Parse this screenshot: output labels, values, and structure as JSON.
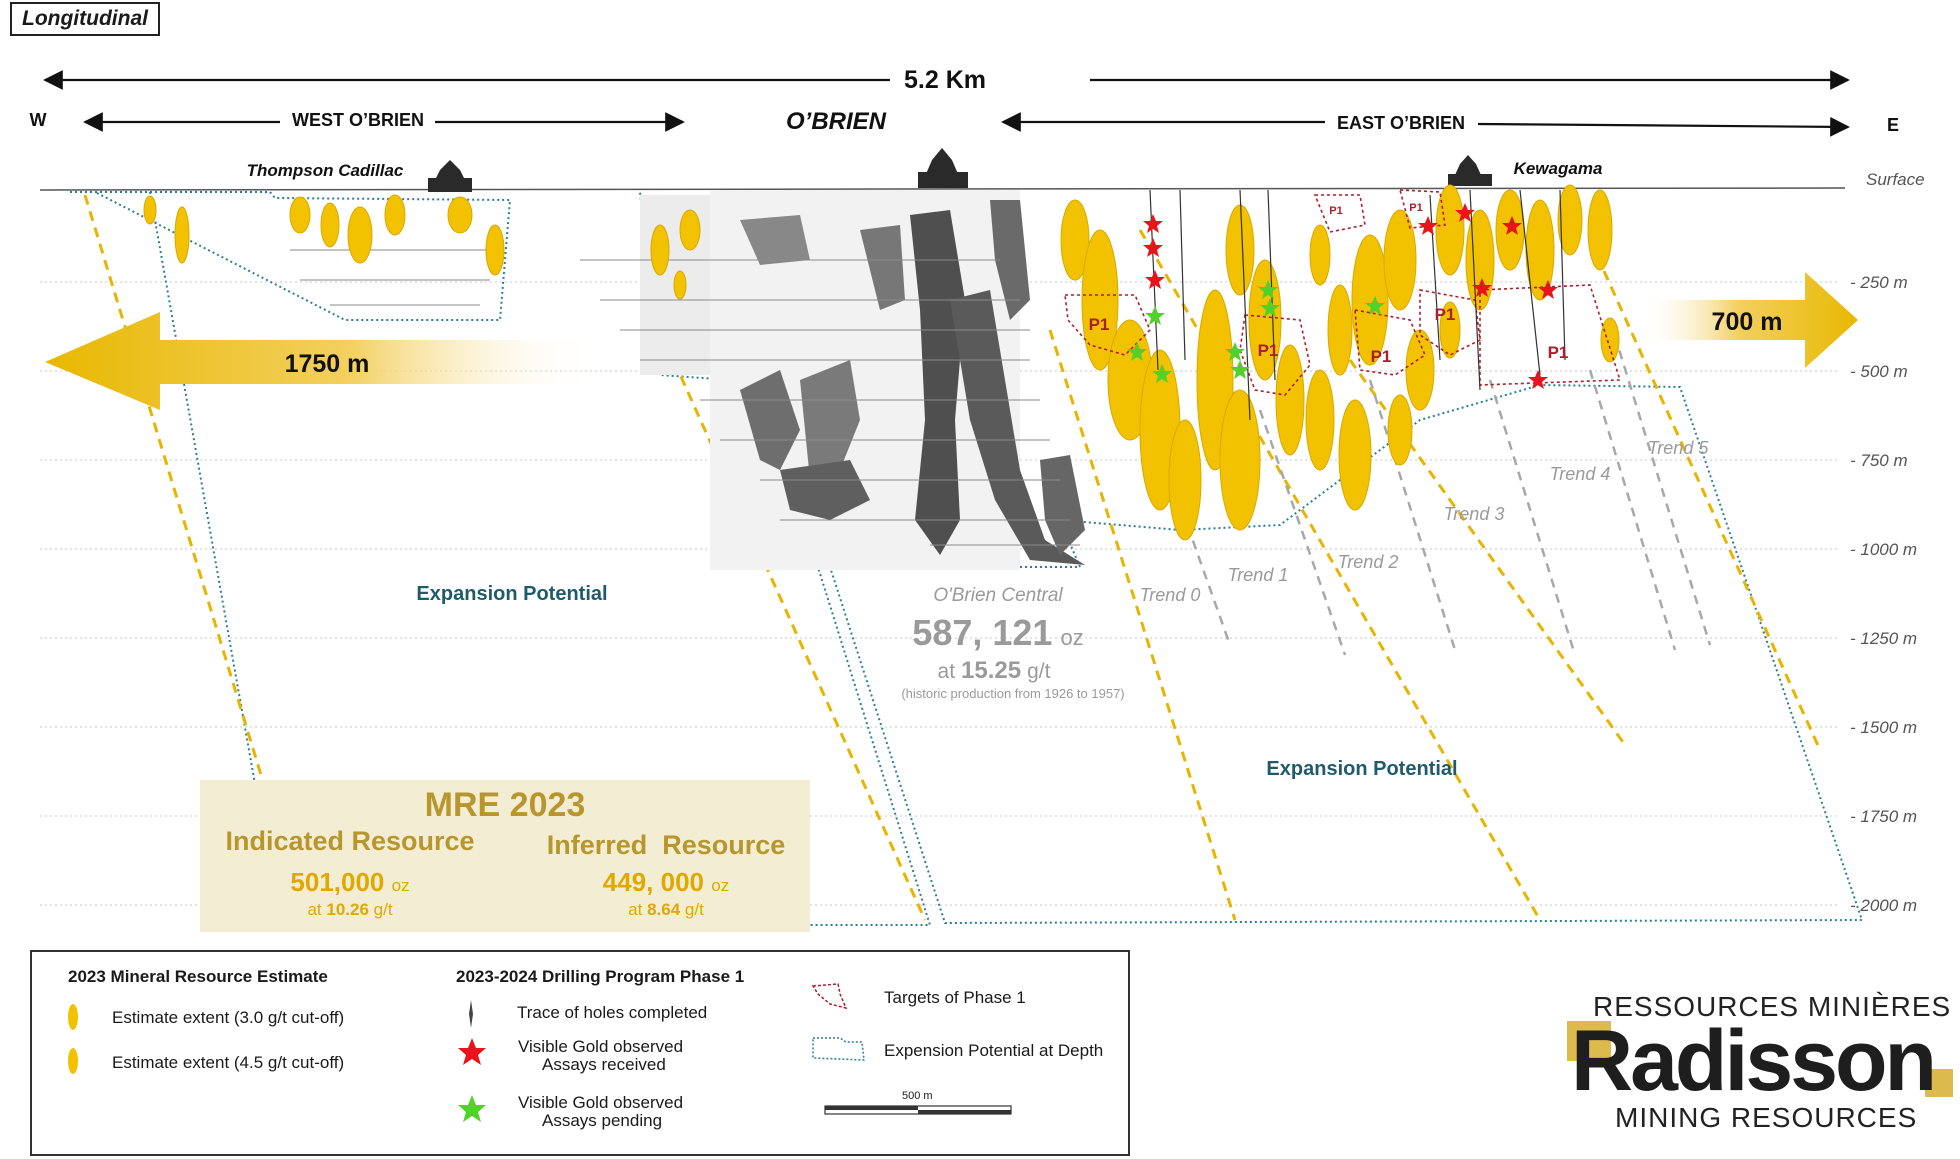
{
  "header": {
    "label": "Longitudinal"
  },
  "extents": {
    "total": "5.2 Km",
    "west_cardinal": "W",
    "east_cardinal": "E",
    "west_zone": "WEST O’BRIEN",
    "center_zone": "O’BRIEN",
    "east_zone": "EAST O’BRIEN"
  },
  "sites": {
    "west": "Thompson Cadillac",
    "east": "Kewagama"
  },
  "depths": [
    "Surface",
    "- 250 m",
    "- 500 m",
    "- 750 m",
    "- 1000 m",
    "- 1250 m",
    "- 1500 m",
    "- 1750 m",
    "- 2000 m"
  ],
  "arrows": {
    "west": "1750 m",
    "east": "700 m"
  },
  "expansion": {
    "west": "Expansion Potential",
    "east": "Expansion Potential"
  },
  "target_label": "P1",
  "trends": [
    "Trend 0",
    "Trend 1",
    "Trend 2",
    "Trend 3",
    "Trend 4",
    "Trend 5"
  ],
  "obrien_central": {
    "title": "O'Brien Central",
    "ounces": "587, 121",
    "ounces_unit": "oz",
    "grade_prefix": "at",
    "grade": "15.25",
    "grade_unit": "g/t",
    "note": "(historic production from 1926 to 1957)"
  },
  "mre": {
    "title": "MRE 2023",
    "indicated": {
      "label": "Indicated Resource",
      "value": "501,000",
      "unit": "oz",
      "grade_prefix": "at",
      "grade": "10.26",
      "grade_unit": "g/t"
    },
    "inferred": {
      "label": "Inferred  Resource",
      "value": "449, 000",
      "unit": "oz",
      "grade_prefix": "at",
      "grade": "8.64",
      "grade_unit": "g/t"
    }
  },
  "legend": {
    "mre_title": "2023 Mineral Resource Estimate",
    "mre_items": [
      "Estimate extent (3.0  g/t cut-off)",
      "Estimate extent (4.5  g/t cut-off)"
    ],
    "drill_title": "2023-2024 Drilling Program Phase 1",
    "drill_items": {
      "trace": "Trace of holes completed",
      "red_line1": "Visible Gold observed",
      "red_line2": "Assays received",
      "green_line1": "Visible Gold observed",
      "green_line2": "Assays pending"
    },
    "targets": "Targets of Phase 1",
    "expansion": "Expension Potential at Depth",
    "scale": "500 m"
  },
  "logo": {
    "top": "RESSOURCES MINIÈRES",
    "name": "Radisson",
    "bottom": "MINING RESOURCES"
  },
  "colors": {
    "gold": "#f2c200",
    "gold_dark": "#d9a900",
    "teal": "#1f5b6b",
    "mre_text": "#b8962e",
    "red_star": "#e8141b",
    "green_star": "#52d12b",
    "target_outline": "#b01c2a"
  }
}
